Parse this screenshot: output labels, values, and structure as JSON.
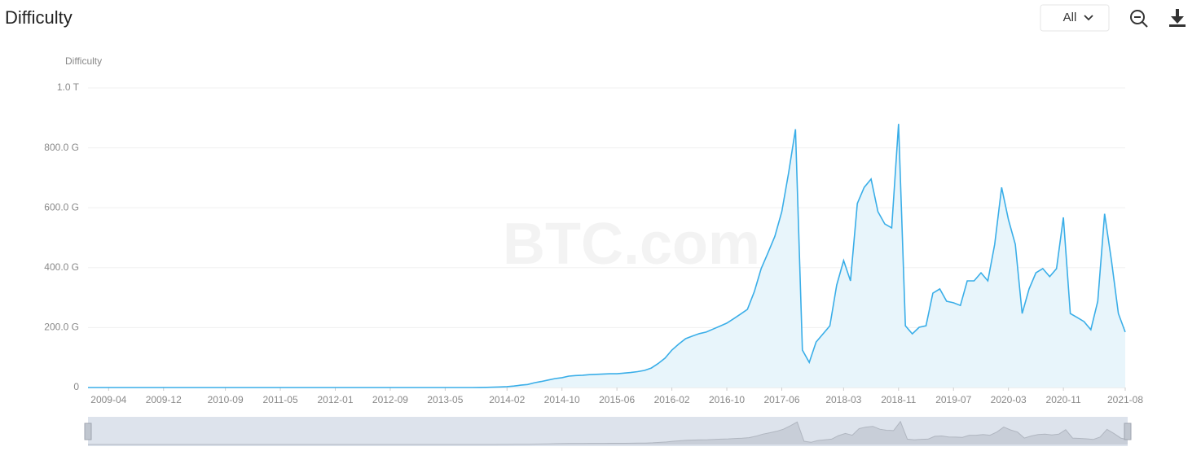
{
  "chart_data": {
    "type": "area",
    "title": "Difficulty",
    "range_selector": "All",
    "ylabel": "Difficulty",
    "watermark": "BTC.com",
    "color": "#3aaee8",
    "fill": "#e8f5fb",
    "grid": true,
    "x": [
      "2009-01",
      "2009-02",
      "2009-03",
      "2009-04",
      "2009-05",
      "2009-06",
      "2009-07",
      "2009-08",
      "2009-09",
      "2009-10",
      "2009-11",
      "2009-12",
      "2010-01",
      "2010-02",
      "2010-03",
      "2010-04",
      "2010-05",
      "2010-06",
      "2010-07",
      "2010-08",
      "2010-09",
      "2010-10",
      "2010-11",
      "2010-12",
      "2011-01",
      "2011-02",
      "2011-03",
      "2011-04",
      "2011-05",
      "2011-06",
      "2011-07",
      "2011-08",
      "2011-09",
      "2011-10",
      "2011-11",
      "2011-12",
      "2012-01",
      "2012-02",
      "2012-03",
      "2012-04",
      "2012-05",
      "2012-06",
      "2012-07",
      "2012-08",
      "2012-09",
      "2012-10",
      "2012-11",
      "2012-12",
      "2013-01",
      "2013-02",
      "2013-03",
      "2013-04",
      "2013-05",
      "2013-06",
      "2013-07",
      "2013-08",
      "2013-09",
      "2013-10",
      "2013-11",
      "2013-12",
      "2014-01",
      "2014-02",
      "2014-03",
      "2014-04",
      "2014-05",
      "2014-06",
      "2014-07",
      "2014-08",
      "2014-09",
      "2014-10",
      "2014-11",
      "2014-12",
      "2015-01",
      "2015-02",
      "2015-03",
      "2015-04",
      "2015-05",
      "2015-06",
      "2015-07",
      "2015-08",
      "2015-09",
      "2015-10",
      "2015-11",
      "2015-12",
      "2016-01",
      "2016-02",
      "2016-03",
      "2016-04",
      "2016-05",
      "2016-06",
      "2016-07",
      "2016-08",
      "2016-09",
      "2016-10",
      "2016-11",
      "2016-12",
      "2017-01",
      "2017-02",
      "2017-03",
      "2017-04",
      "2017-05",
      "2017-06",
      "2017-07",
      "2017-08",
      "2017-09",
      "2017-10",
      "2017-11",
      "2017-12",
      "2018-01",
      "2018-02",
      "2018-03",
      "2018-04",
      "2018-05",
      "2018-06",
      "2018-07",
      "2018-08",
      "2018-09",
      "2018-10",
      "2018-11",
      "2018-12",
      "2019-01",
      "2019-02",
      "2019-03",
      "2019-04",
      "2019-05",
      "2019-06",
      "2019-07",
      "2019-08",
      "2019-09",
      "2019-10",
      "2019-11",
      "2019-12",
      "2020-01",
      "2020-02",
      "2020-03",
      "2020-04",
      "2020-05",
      "2020-06",
      "2020-07",
      "2020-08",
      "2020-09",
      "2020-10",
      "2020-11",
      "2020-12",
      "2021-01",
      "2021-02",
      "2021-03",
      "2021-04",
      "2021-05",
      "2021-06",
      "2021-07",
      "2021-08"
    ],
    "values": [
      0,
      0,
      0,
      0,
      0,
      0,
      0,
      0,
      0,
      0,
      0,
      0,
      0,
      0,
      0,
      0,
      0,
      0,
      0,
      0,
      0,
      0,
      0,
      0,
      0.001,
      0.001,
      0.001,
      0.001,
      0.001,
      0.001,
      0.001,
      0.001,
      0.001,
      0.001,
      0.001,
      0.001,
      0.002,
      0.002,
      0.002,
      0.002,
      0.002,
      0.002,
      0.002,
      0.002,
      0.002,
      0.002,
      0.002,
      0.002,
      0.003,
      0.003,
      0.005,
      0.008,
      0.011,
      0.012,
      0.026,
      0.037,
      0.065,
      0.19,
      0.51,
      1.2,
      2,
      3,
      5,
      8,
      10,
      16,
      20,
      25,
      30,
      33,
      38,
      40,
      41,
      43,
      44,
      45,
      46,
      46,
      48,
      50,
      53,
      57,
      65,
      80,
      98,
      125,
      145,
      163,
      172,
      180,
      185,
      195,
      205,
      215,
      230,
      245,
      261,
      320,
      397,
      450,
      505,
      587,
      717,
      862,
      125,
      84,
      152,
      179,
      206,
      342,
      424,
      356,
      614,
      668,
      696,
      587,
      546,
      533,
      880,
      206,
      179,
      201,
      206,
      315,
      329,
      288,
      283,
      274,
      356,
      356,
      383,
      356,
      478,
      668,
      560,
      478,
      247,
      329,
      383,
      397,
      370,
      397,
      568,
      247,
      234,
      220,
      193,
      288,
      580,
      424,
      247,
      185
    ],
    "ylim": [
      0,
      1000
    ],
    "yticks": [
      0,
      {
        "value": 200,
        "label": "200.0 G"
      },
      {
        "value": 400,
        "label": "400.0 G"
      },
      {
        "value": 600,
        "label": "600.0 G"
      },
      {
        "value": 800,
        "label": "800.0 G"
      },
      {
        "value": 1000,
        "label": "1.0 T"
      }
    ],
    "xticks": [
      "2009-04",
      "2009-12",
      "2010-09",
      "2011-05",
      "2012-01",
      "2012-09",
      "2013-05",
      "2014-02",
      "2014-10",
      "2015-06",
      "2016-02",
      "2016-10",
      "2017-06",
      "2018-03",
      "2018-11",
      "2019-07",
      "2020-03",
      "2020-11",
      "2021-08"
    ]
  }
}
